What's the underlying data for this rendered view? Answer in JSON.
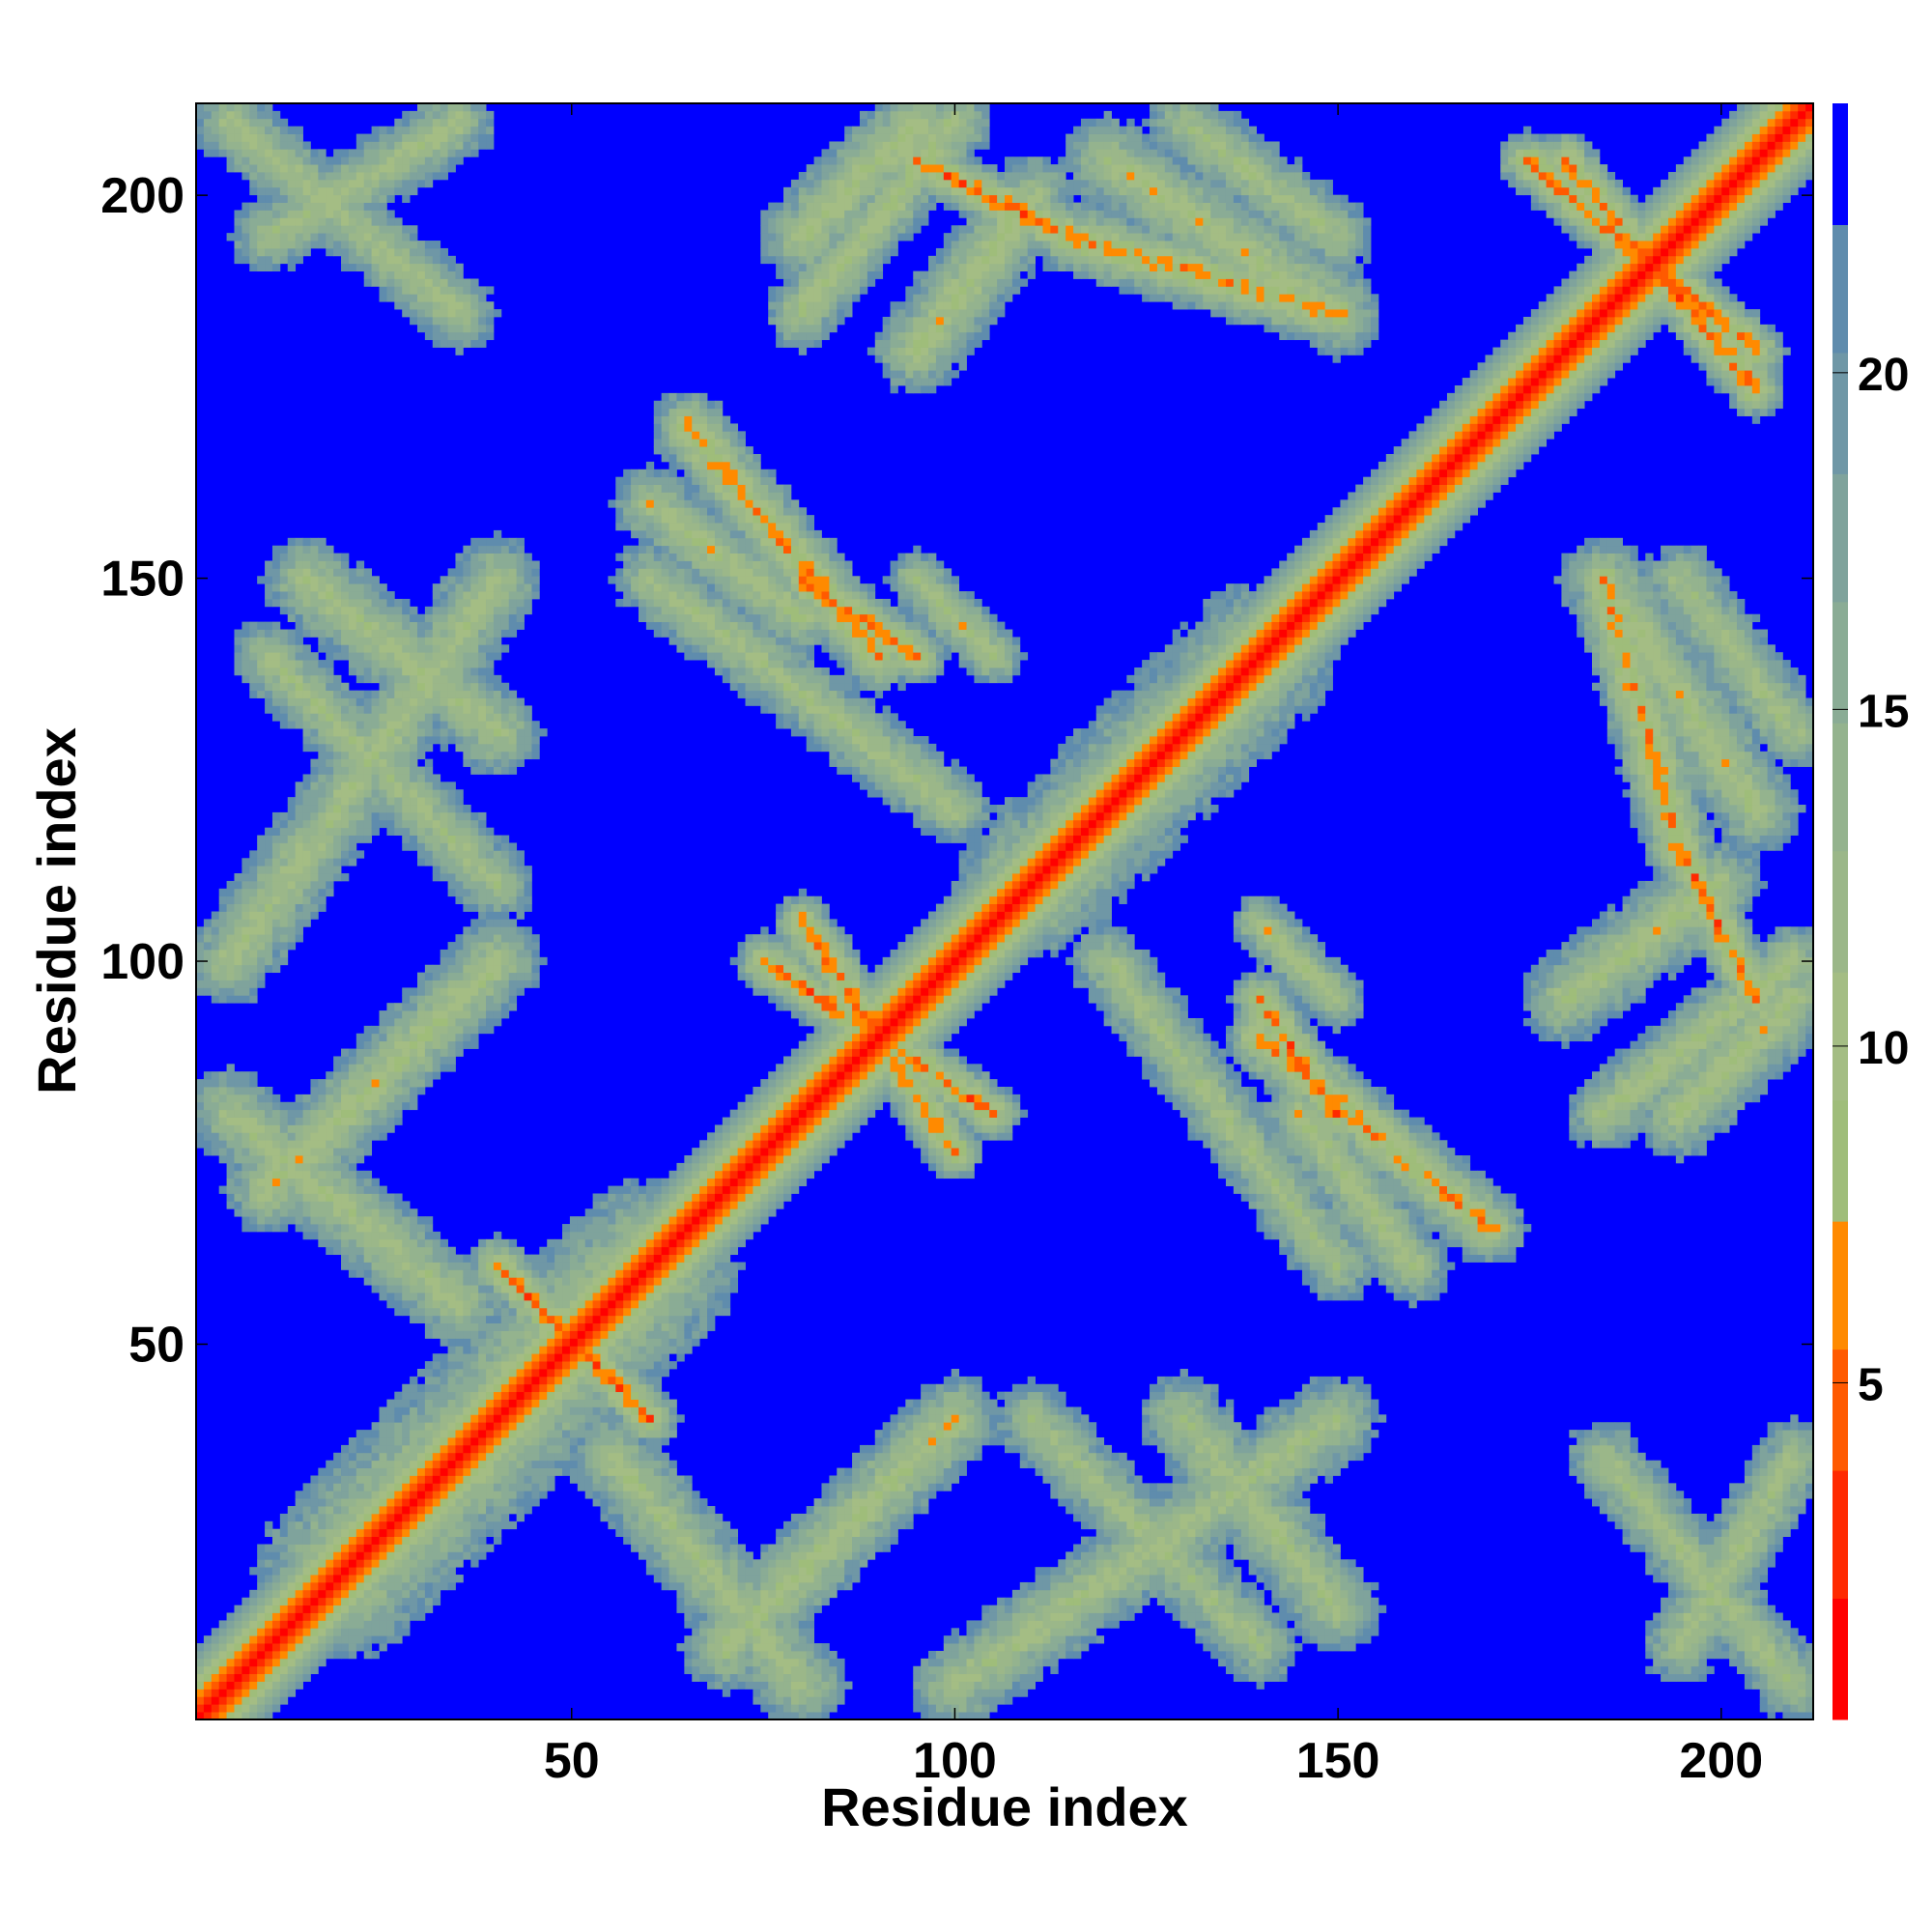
{
  "chart_data": {
    "type": "heatmap",
    "title": "",
    "xlabel": "Residue index",
    "ylabel": "Residue index",
    "n_residues": 212,
    "xlim": [
      1,
      212
    ],
    "ylim": [
      1,
      212
    ],
    "x_ticks": [
      50,
      100,
      150,
      200
    ],
    "y_ticks": [
      50,
      100,
      150,
      200
    ],
    "colorbar": {
      "range": [
        0,
        24
      ],
      "ticks": [
        5,
        10,
        15,
        20
      ],
      "levels": [
        {
          "from": 0,
          "to": 1.8,
          "color": "#ff0000"
        },
        {
          "from": 1.8,
          "to": 3.7,
          "color": "#ff2a00"
        },
        {
          "from": 3.7,
          "to": 5.5,
          "color": "#ff5a00"
        },
        {
          "from": 5.5,
          "to": 7.4,
          "color": "#ff8a00"
        },
        {
          "from": 7.4,
          "to": 9.2,
          "color": "#9fbd7a"
        },
        {
          "from": 9.2,
          "to": 11.1,
          "color": "#a4bd84"
        },
        {
          "from": 11.1,
          "to": 12.9,
          "color": "#9bb789"
        },
        {
          "from": 12.9,
          "to": 14.8,
          "color": "#94b38e"
        },
        {
          "from": 14.8,
          "to": 16.6,
          "color": "#8aac95"
        },
        {
          "from": 16.6,
          "to": 18.5,
          "color": "#7fa39c"
        },
        {
          "from": 18.5,
          "to": 20.3,
          "color": "#6f97a6"
        },
        {
          "from": 20.3,
          "to": 22.2,
          "color": "#5f8cad"
        },
        {
          "from": 22.2,
          "to": 24,
          "color": "#0000ff"
        }
      ]
    },
    "contact_threshold": 22,
    "background_color": "#0000ff",
    "grid": false,
    "legend": "colorbar-right",
    "diagonal_band": {
      "start": 1,
      "end": 212,
      "value_on_diagonal": 0
    },
    "contact_features": [
      {
        "kind": "diagonal",
        "x": [
          10,
          40
        ],
        "y": [
          70,
          100
        ],
        "width": 6,
        "min_value": 9
      },
      {
        "kind": "diagonal",
        "x": [
          10,
          40
        ],
        "y": [
          140,
          110
        ],
        "width": 5,
        "min_value": 10
      },
      {
        "kind": "diagonal",
        "x": [
          10,
          35
        ],
        "y": [
          195,
          210
        ],
        "width": 5,
        "min_value": 10
      },
      {
        "kind": "diagonal",
        "x": [
          15,
          40
        ],
        "y": [
          150,
          130
        ],
        "width": 6,
        "min_value": 10
      },
      {
        "kind": "diagonal",
        "x": [
          75,
          90
        ],
        "y": [
          100,
          90
        ],
        "width": 4,
        "min_value": 5
      },
      {
        "kind": "diagonal",
        "x": [
          90,
          105
        ],
        "y": [
          90,
          80
        ],
        "width": 4,
        "min_value": 5
      },
      {
        "kind": "diagonal",
        "x": [
          55,
          80
        ],
        "y": [
          35,
          5
        ],
        "width": 6,
        "min_value": 10
      },
      {
        "kind": "diagonal",
        "x": [
          100,
          150
        ],
        "y": [
          5,
          40
        ],
        "width": 6,
        "min_value": 10
      },
      {
        "kind": "diagonal",
        "x": [
          120,
          150
        ],
        "y": [
          100,
          60
        ],
        "width": 5,
        "min_value": 10
      },
      {
        "kind": "diagonal",
        "x": [
          140,
          170
        ],
        "y": [
          90,
          65
        ],
        "width": 5,
        "min_value": 6
      },
      {
        "kind": "diagonal",
        "x": [
          180,
          200
        ],
        "y": [
          95,
          110
        ],
        "width": 6,
        "min_value": 9
      },
      {
        "kind": "diagonal",
        "x": [
          195,
          210
        ],
        "y": [
          80,
          95
        ],
        "width": 6,
        "min_value": 9
      },
      {
        "kind": "diagonal",
        "x": [
          185,
          205
        ],
        "y": [
          150,
          120
        ],
        "width": 6,
        "min_value": 9
      },
      {
        "kind": "diagonal",
        "x": [
          185,
          210
        ],
        "y": [
          35,
          5
        ],
        "width": 5,
        "min_value": 10
      },
      {
        "kind": "diagonal",
        "x": [
          80,
          95
        ],
        "y": [
          150,
          140
        ],
        "width": 4,
        "min_value": 5
      },
      {
        "kind": "diagonal",
        "x": [
          60,
          80
        ],
        "y": [
          160,
          145
        ],
        "width": 5,
        "min_value": 9
      },
      {
        "kind": "diagonal",
        "x": [
          95,
          105
        ],
        "y": [
          150,
          140
        ],
        "width": 4,
        "min_value": 9
      },
      {
        "kind": "diagonal",
        "x": [
          80,
          100
        ],
        "y": [
          185,
          210
        ],
        "width": 5,
        "min_value": 9
      },
      {
        "kind": "diagonal",
        "x": [
          95,
          115
        ],
        "y": [
          205,
          195
        ],
        "width": 4,
        "min_value": 5
      },
      {
        "kind": "diagonal",
        "x": [
          115,
          150
        ],
        "y": [
          195,
          185
        ],
        "width": 5,
        "min_value": 6
      },
      {
        "kind": "diagonal",
        "x": [
          130,
          150
        ],
        "y": [
          210,
          195
        ],
        "width": 5,
        "min_value": 10
      },
      {
        "kind": "diagonal",
        "x": [
          175,
          205
        ],
        "y": [
          205,
          180
        ],
        "width": 4,
        "min_value": 5
      },
      {
        "kind": "diagonal",
        "x": [
          45,
          60
        ],
        "y": [
          55,
          40
        ],
        "width": 4,
        "min_value": 5
      },
      {
        "kind": "diagonal",
        "x": [
          20,
          60
        ],
        "y": [
          20,
          60
        ],
        "width": 12,
        "min_value": 8
      },
      {
        "kind": "diagonal",
        "x": [
          110,
          140
        ],
        "y": [
          110,
          140
        ],
        "width": 10,
        "min_value": 8
      }
    ]
  }
}
